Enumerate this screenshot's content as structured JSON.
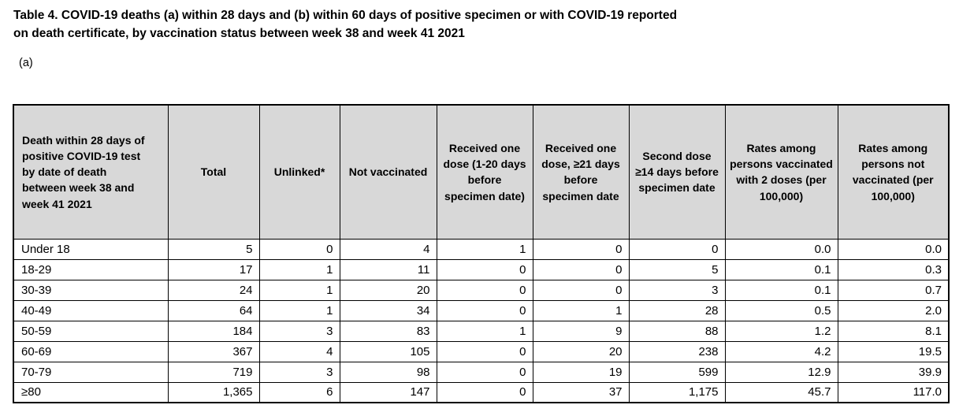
{
  "page": {
    "title_line1": "Table 4. COVID-19 deaths (a) within 28 days and (b) within 60 days of positive specimen or with COVID-19 reported",
    "title_line2": "on death certificate, by vaccination status between week 38 and week 41 2021",
    "section_label": "(a)"
  },
  "colors": {
    "header_bg": "#d8d8d8",
    "border": "#000000",
    "text": "#000000",
    "background": "#ffffff"
  },
  "table": {
    "headers": [
      "Death within 28 days of positive COVID-19 test by date of death between week 38 and week 41 2021",
      "Total",
      "Unlinked*",
      "Not vaccinated",
      "Received one dose (1-20 days before specimen date)",
      "Received one dose, ≥21 days before specimen date",
      "Second dose ≥14 days before specimen date",
      "Rates among persons vaccinated with 2 doses (per 100,000)",
      "Rates among persons not vaccinated (per 100,000)"
    ],
    "rows": [
      {
        "label": "Under 18",
        "values": [
          "5",
          "0",
          "4",
          "1",
          "0",
          "0",
          "0.0",
          "0.0"
        ]
      },
      {
        "label": "18-29",
        "values": [
          "17",
          "1",
          "11",
          "0",
          "0",
          "5",
          "0.1",
          "0.3"
        ]
      },
      {
        "label": "30-39",
        "values": [
          "24",
          "1",
          "20",
          "0",
          "0",
          "3",
          "0.1",
          "0.7"
        ]
      },
      {
        "label": "40-49",
        "values": [
          "64",
          "1",
          "34",
          "0",
          "1",
          "28",
          "0.5",
          "2.0"
        ]
      },
      {
        "label": "50-59",
        "values": [
          "184",
          "3",
          "83",
          "1",
          "9",
          "88",
          "1.2",
          "8.1"
        ]
      },
      {
        "label": "60-69",
        "values": [
          "367",
          "4",
          "105",
          "0",
          "20",
          "238",
          "4.2",
          "19.5"
        ]
      },
      {
        "label": "70-79",
        "values": [
          "719",
          "3",
          "98",
          "0",
          "19",
          "599",
          "12.9",
          "39.9"
        ]
      },
      {
        "label": "≥80",
        "values": [
          "1,365",
          "6",
          "147",
          "0",
          "37",
          "1,175",
          "45.7",
          "117.0"
        ]
      }
    ]
  }
}
